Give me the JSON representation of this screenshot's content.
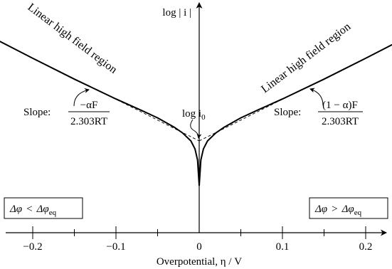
{
  "chart_data": {
    "type": "line",
    "title": "",
    "xlabel": "Overpotential, η / V",
    "ylabel": "log | i |",
    "xlim": [
      -0.3,
      0.3
    ],
    "xticks": [
      -0.2,
      -0.1,
      0,
      0.1,
      0.2
    ],
    "xtick_labels": [
      "−0.2",
      "−0.1",
      "0",
      "0.1",
      "0.2"
    ],
    "x_minor_ticks": [
      -0.25,
      -0.15,
      -0.05,
      0.05,
      0.15,
      0.25
    ],
    "grid": false,
    "legend": "none",
    "exchange_point": {
      "x": 0,
      "label_text": "log i",
      "label_sub": "0"
    },
    "series": [
      {
        "style": "solid",
        "x": [
          -0.3,
          -0.25,
          -0.2,
          -0.15,
          -0.1,
          -0.07,
          -0.05,
          -0.03,
          -0.02,
          -0.01,
          -0.005,
          -0.002,
          0
        ],
        "y": [
          3.92,
          3.25,
          2.58,
          1.93,
          1.31,
          0.96,
          0.72,
          0.43,
          0.25,
          0.0,
          -0.25,
          -0.6,
          -1.4
        ]
      },
      {
        "style": "solid",
        "x": [
          0,
          0.002,
          0.005,
          0.01,
          0.02,
          0.03,
          0.05,
          0.07,
          0.1,
          0.15,
          0.2,
          0.25,
          0.29
        ],
        "y": [
          -1.4,
          -0.6,
          -0.25,
          0.0,
          0.25,
          0.43,
          0.72,
          0.96,
          1.31,
          1.93,
          2.58,
          3.25,
          3.8
        ]
      },
      {
        "style": "dashed",
        "x": [
          -0.12,
          0
        ],
        "y": [
          1.56,
          0
        ]
      },
      {
        "style": "dashed",
        "x": [
          0,
          0.12
        ],
        "y": [
          0,
          1.56
        ]
      }
    ],
    "annotations": {
      "left_region": "Linear high field region",
      "right_region": "Linear high field region",
      "left_slope_prefix": "Slope:",
      "left_slope_numerator": "−αF",
      "left_slope_denominator": "2.303RT",
      "right_slope_prefix": "Slope:",
      "right_slope_numerator": "(1 − α)F",
      "right_slope_denominator": "2.303RT",
      "left_box": {
        "lhs": "Δφ",
        "op": "<",
        "rhs": "Δφ",
        "rhs_sub": "eq"
      },
      "right_box": {
        "lhs": "Δφ",
        "op": ">",
        "rhs": "Δφ",
        "rhs_sub": "eq"
      }
    }
  }
}
